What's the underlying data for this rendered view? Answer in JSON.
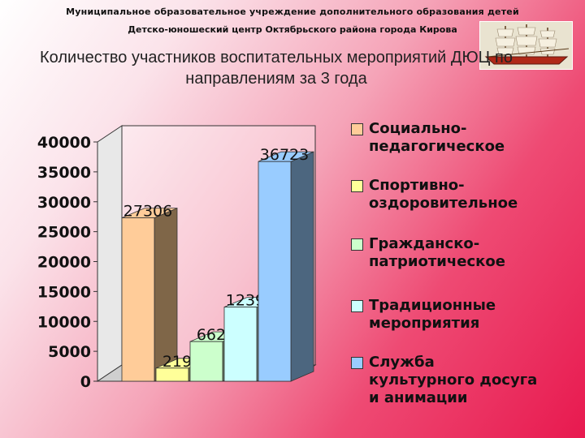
{
  "header": {
    "org_line1": "Муниципальное образовательное учреждение дополнительного образования детей",
    "org_line2": "Детско-юношеский центр Октябрьского района города Кирова"
  },
  "logo": {
    "icon": "sailing-ship-icon"
  },
  "chart_data": {
    "type": "bar",
    "title": "Количество участников воспитательных мероприятий ДЮЦ по направлениям за 3 года",
    "ylim": [
      0,
      40000
    ],
    "yticks": [
      0,
      5000,
      10000,
      15000,
      20000,
      25000,
      30000,
      35000,
      40000
    ],
    "grid": false,
    "legend_position": "right",
    "three_d": true,
    "series": [
      {
        "name": "Социально-педагогическое",
        "value": 27306,
        "color": "#ffcc99",
        "side_color": "#7f6648",
        "label": "27306"
      },
      {
        "name": "Спортивно-оздоровительное",
        "value": 2195,
        "color": "#ffff99",
        "side_color": "#7f7f4c",
        "label": "2195"
      },
      {
        "name": "Гражданско-патриотическое",
        "value": 6627,
        "color": "#ccffcc",
        "side_color": "#667f66",
        "label": "6627"
      },
      {
        "name": "Традиционные мероприятия",
        "value": 12391,
        "color": "#ccffff",
        "side_color": "#667f7f",
        "label": "12391"
      },
      {
        "name": "Служба культурного досуга и анимации",
        "value": 36723,
        "color": "#99ccff",
        "side_color": "#4c667f",
        "label": "36723"
      }
    ],
    "legend_labels": [
      "Социально-\nпедагогическое",
      "Спортивно-\nоздоровительное",
      "Гражданско-\nпатриотическое",
      "Традиционные\nмероприятия",
      "Служба\nкультурного досуга\nи анимации"
    ]
  }
}
